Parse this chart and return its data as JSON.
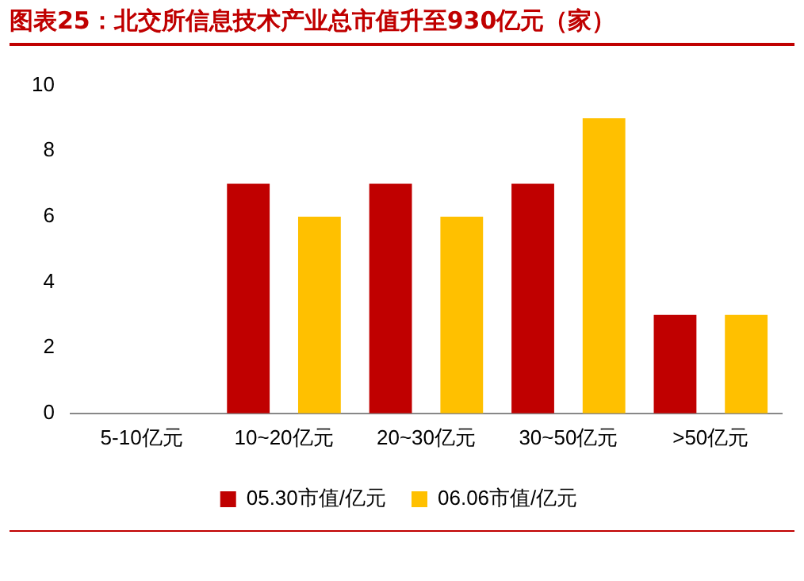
{
  "chart_data": {
    "type": "bar",
    "title": "图表25：北交所信息技术产业总市值升至930亿元（家）",
    "categories": [
      "5-10亿元",
      "10~20亿元",
      "20~30亿元",
      "30~50亿元",
      ">50亿元"
    ],
    "series": [
      {
        "name": "05.30市值/亿元",
        "color": "#c00000",
        "values": [
          0,
          7,
          7,
          7,
          3
        ]
      },
      {
        "name": "06.06市值/亿元",
        "color": "#ffc000",
        "values": [
          0,
          6,
          6,
          9,
          3
        ]
      }
    ],
    "ylim": [
      0,
      10
    ],
    "yticks": [
      0,
      2,
      4,
      6,
      8,
      10
    ],
    "grid": false,
    "legend": "bottom"
  }
}
